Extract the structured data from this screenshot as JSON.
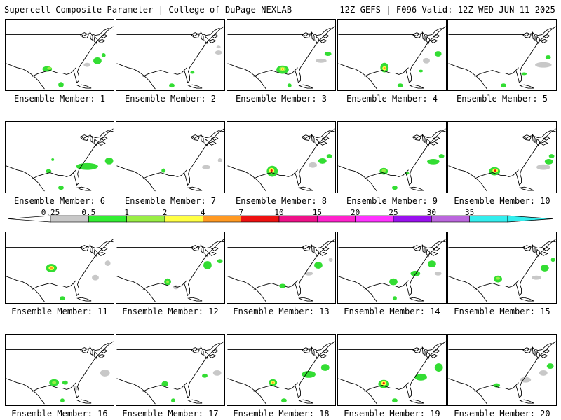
{
  "header": {
    "left": "Supercell Composite Parameter | College of DuPage NEXLAB",
    "right": "12Z GEFS | F096 Valid: 12Z WED JUN 11 2025"
  },
  "colorbar": {
    "labels": [
      "0.25",
      "0.5",
      "1",
      "2",
      "4",
      "7",
      "10",
      "15",
      "20",
      "25",
      "30",
      "35"
    ],
    "colors": [
      "#c8c8c8",
      "#33ee33",
      "#99ee44",
      "#ffff44",
      "#ff9922",
      "#ee1111",
      "#ee1188",
      "#ff22cc",
      "#ff33ff",
      "#9911ee",
      "#bb66dd",
      "#33eeee"
    ]
  },
  "colors": {
    "low": "#c8c8c8",
    "green": "#33dd33",
    "lightgreen": "#99ee44",
    "yellow": "#ffff44",
    "orange": "#ff9922",
    "red": "#ee1111"
  },
  "panels": [
    {
      "label": "Ensemble Member: 1"
    },
    {
      "label": "Ensemble Member: 2"
    },
    {
      "label": "Ensemble Member: 3"
    },
    {
      "label": "Ensemble Member: 4"
    },
    {
      "label": "Ensemble Member: 5"
    },
    {
      "label": "Ensemble Member: 6"
    },
    {
      "label": "Ensemble Member: 7"
    },
    {
      "label": "Ensemble Member: 8"
    },
    {
      "label": "Ensemble Member: 9"
    },
    {
      "label": "Ensemble Member: 10"
    },
    {
      "label": "Ensemble Member: 11"
    },
    {
      "label": "Ensemble Member: 12"
    },
    {
      "label": "Ensemble Member: 13"
    },
    {
      "label": "Ensemble Member: 14"
    },
    {
      "label": "Ensemble Member: 15"
    },
    {
      "label": "Ensemble Member: 16"
    },
    {
      "label": "Ensemble Member: 17"
    },
    {
      "label": "Ensemble Member: 18"
    },
    {
      "label": "Ensemble Member: 19"
    },
    {
      "label": "Ensemble Member: 20"
    }
  ]
}
